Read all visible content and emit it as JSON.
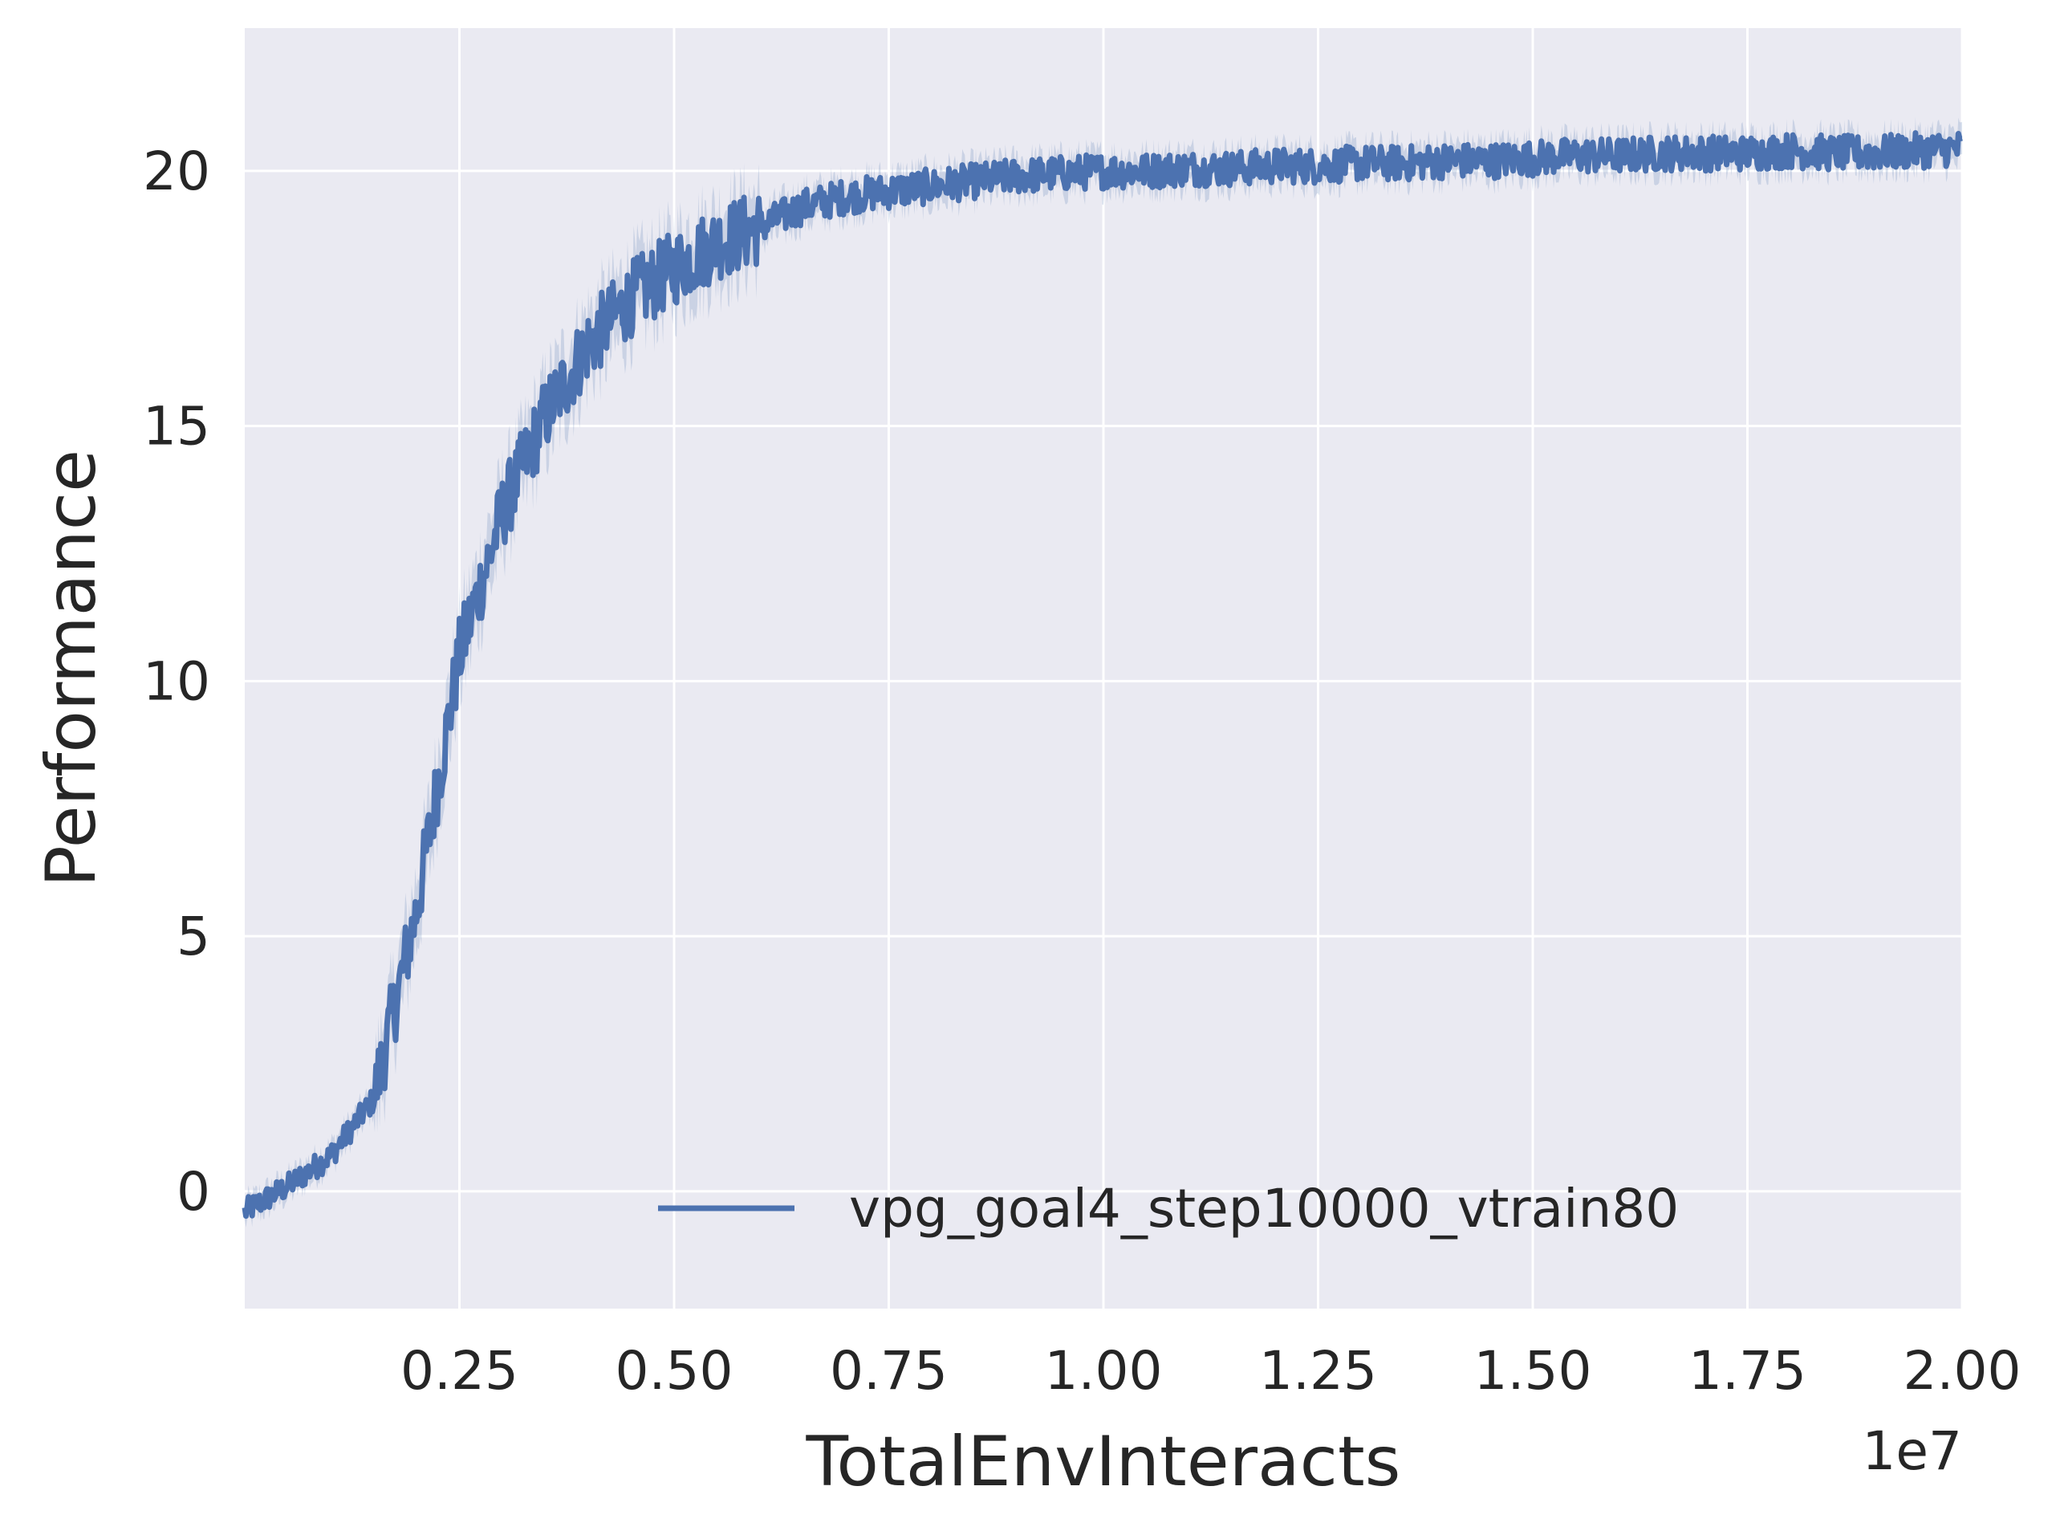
{
  "chart_data": {
    "type": "line",
    "title": "",
    "xlabel": "TotalEnvInteracts",
    "ylabel": "Performance",
    "x_offset_label": "1e7",
    "xlim": [
      0,
      2.0
    ],
    "ylim": [
      -2.3,
      22.8
    ],
    "x_scale_factor": 10000000,
    "x_ticks": [
      0.25,
      0.5,
      0.75,
      1.0,
      1.25,
      1.5,
      1.75,
      2.0
    ],
    "x_tick_labels": [
      "0.25",
      "0.50",
      "0.75",
      "1.00",
      "1.25",
      "1.50",
      "1.75",
      "2.00"
    ],
    "y_ticks": [
      0,
      5,
      10,
      15,
      20
    ],
    "y_tick_labels": [
      "0",
      "5",
      "10",
      "15",
      "20"
    ],
    "grid": true,
    "legend_position": "lower-right",
    "background_color": "#eaeaf2",
    "grid_color": "#ffffff",
    "series": [
      {
        "name": "vpg_goal4_step10000_vtrain80",
        "color": "#4c72b0",
        "x": [
          0.0,
          0.05,
          0.1,
          0.15,
          0.2,
          0.25,
          0.3,
          0.35,
          0.4,
          0.45,
          0.5,
          0.55,
          0.6,
          0.65,
          0.7,
          0.75,
          0.8,
          0.85,
          0.9,
          0.95,
          1.0,
          1.05,
          1.1,
          1.15,
          1.2,
          1.25,
          1.3,
          1.35,
          1.4,
          1.45,
          1.5,
          1.55,
          1.6,
          1.65,
          1.7,
          1.75,
          1.8,
          1.85,
          1.9,
          1.95,
          2.0
        ],
        "y": [
          -0.4,
          0.1,
          0.7,
          1.8,
          5.5,
          10.5,
          13.3,
          15.2,
          16.6,
          17.5,
          18.1,
          18.6,
          18.9,
          19.3,
          19.5,
          19.6,
          19.7,
          19.8,
          19.9,
          19.95,
          20.0,
          20.0,
          20.05,
          20.05,
          20.1,
          20.1,
          20.15,
          20.15,
          20.2,
          20.2,
          20.25,
          20.3,
          20.3,
          20.35,
          20.35,
          20.35,
          20.4,
          20.35,
          20.35,
          20.4,
          20.45
        ]
      }
    ]
  }
}
